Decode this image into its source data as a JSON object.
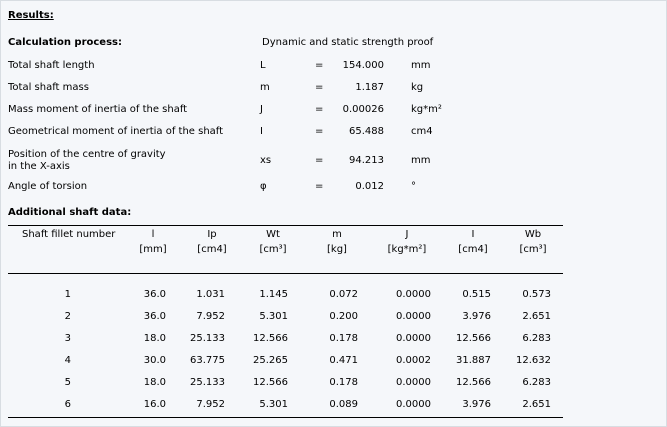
{
  "results_heading": "Results:",
  "calc": {
    "label": "Calculation process:",
    "value": "Dynamic and static strength proof"
  },
  "props": [
    {
      "label": "Total shaft length",
      "symbol": "L",
      "eq": "=",
      "value": "154.000",
      "unit": "mm"
    },
    {
      "label": "Total shaft mass",
      "symbol": "m",
      "eq": "=",
      "value": "1.187",
      "unit": "kg"
    },
    {
      "label": "Mass moment of inertia of the shaft",
      "symbol": "J",
      "eq": "=",
      "value": "0.00026",
      "unit": "kg*m²"
    },
    {
      "label": "Geometrical moment of inertia of the shaft",
      "symbol": "I",
      "eq": "=",
      "value": "65.488",
      "unit": "cm4"
    },
    {
      "label": "Position of the centre of gravity\nin the X-axis",
      "symbol": "xs",
      "eq": "=",
      "value": "94.213",
      "unit": "mm"
    },
    {
      "label": "Angle of torsion",
      "symbol": "φ",
      "eq": "=",
      "value": "0.012",
      "unit": "°"
    }
  ],
  "additional_heading": "Additional shaft data:",
  "table": {
    "columns": [
      {
        "name": "Shaft fillet number",
        "unit": ""
      },
      {
        "name": "l",
        "unit": "[mm]"
      },
      {
        "name": "Ip",
        "unit": "[cm4]"
      },
      {
        "name": "Wt",
        "unit": "[cm³]"
      },
      {
        "name": "m",
        "unit": "[kg]"
      },
      {
        "name": "J",
        "unit": "[kg*m²]"
      },
      {
        "name": "I",
        "unit": "[cm4]"
      },
      {
        "name": "Wb",
        "unit": "[cm³]"
      }
    ],
    "rows": [
      [
        "1",
        "36.0",
        "1.031",
        "1.145",
        "0.072",
        "0.0000",
        "0.515",
        "0.573"
      ],
      [
        "2",
        "36.0",
        "7.952",
        "5.301",
        "0.200",
        "0.0000",
        "3.976",
        "2.651"
      ],
      [
        "3",
        "18.0",
        "25.133",
        "12.566",
        "0.178",
        "0.0000",
        "12.566",
        "6.283"
      ],
      [
        "4",
        "30.0",
        "63.775",
        "25.265",
        "0.471",
        "0.0002",
        "31.887",
        "12.632"
      ],
      [
        "5",
        "18.0",
        "25.133",
        "12.566",
        "0.178",
        "0.0000",
        "12.566",
        "6.283"
      ],
      [
        "6",
        "16.0",
        "7.952",
        "5.301",
        "0.089",
        "0.0000",
        "3.976",
        "2.651"
      ]
    ]
  }
}
